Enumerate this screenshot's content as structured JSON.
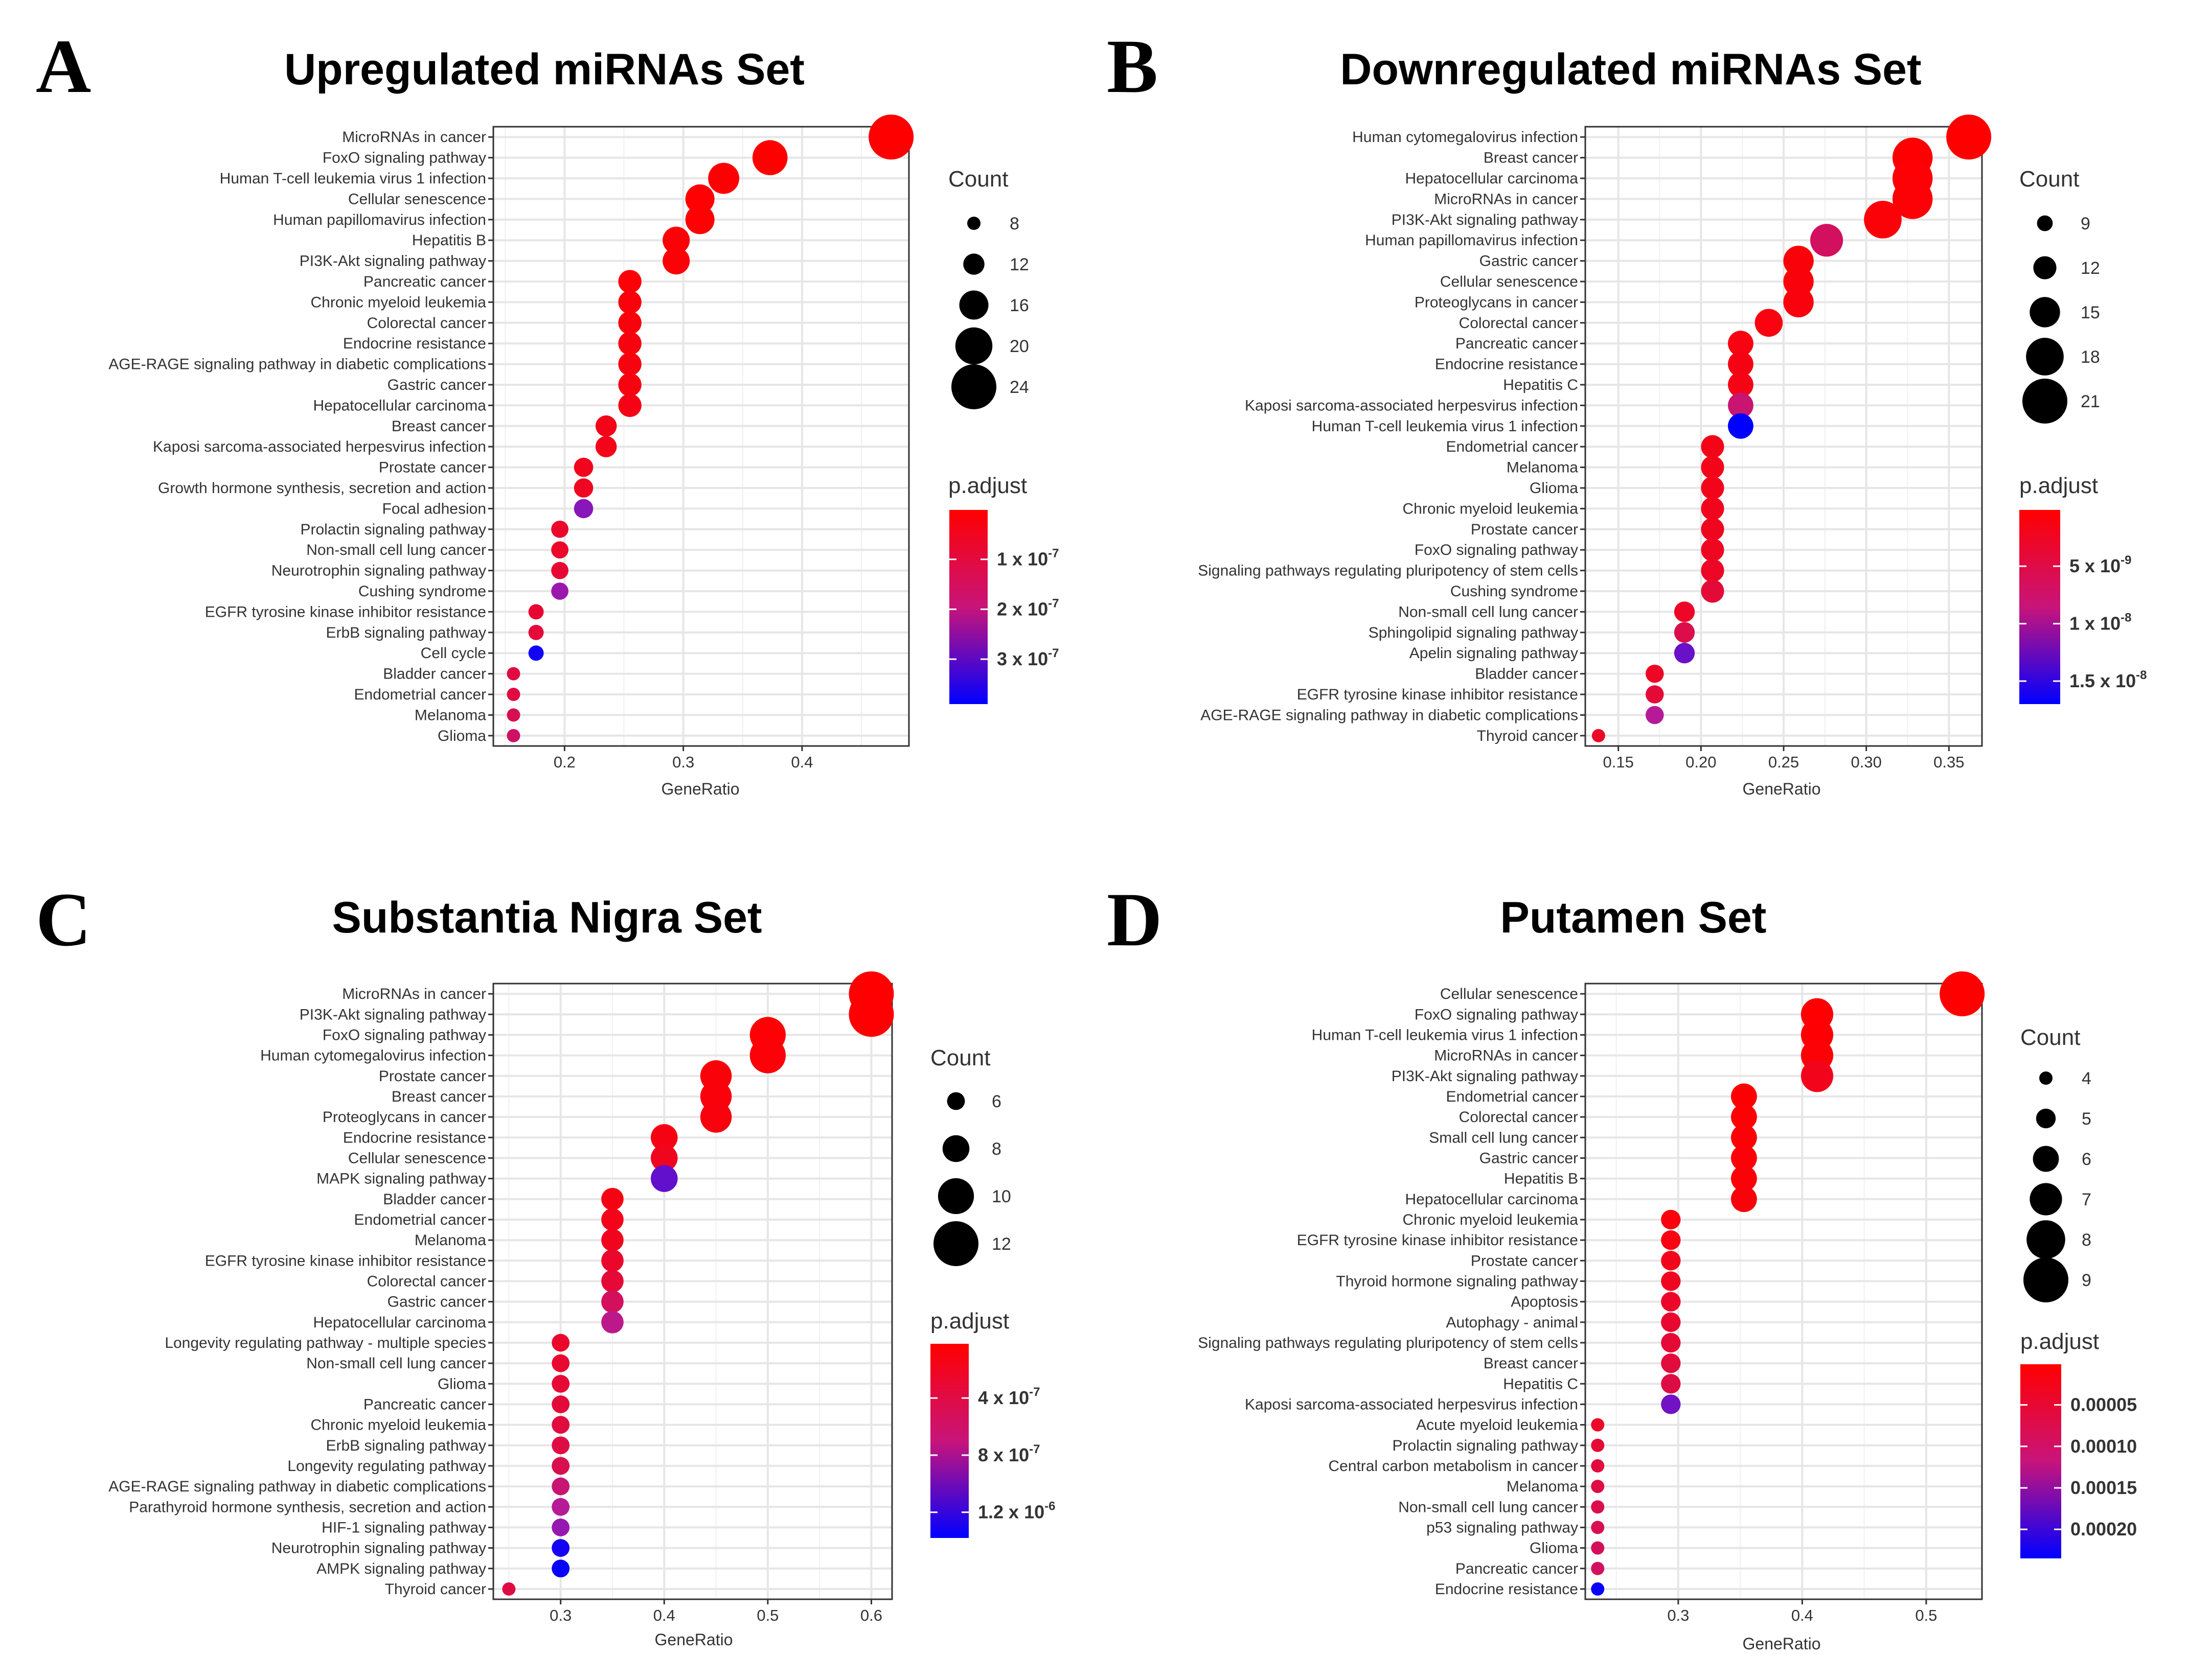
{
  "chart_data": [
    {
      "panel_label": "A",
      "type": "scatter",
      "title": "Upregulated miRNAs Set",
      "xlabel": "GeneRatio",
      "ylabel": "",
      "xlim": [
        0.14,
        0.49
      ],
      "xticks": [
        0.2,
        0.3,
        0.4
      ],
      "xtick_labels": [
        "0.2",
        "0.3",
        "0.4"
      ],
      "categories": [
        "MicroRNAs in cancer",
        "FoxO signaling pathway",
        "Human T-cell leukemia virus 1 infection",
        "Cellular senescence",
        "Human papillomavirus infection",
        "Hepatitis B",
        "PI3K-Akt signaling pathway",
        "Pancreatic cancer",
        "Chronic myeloid leukemia",
        "Colorectal cancer",
        "Endocrine resistance",
        "AGE-RAGE signaling pathway in diabetic complications",
        "Gastric cancer",
        "Hepatocellular carcinoma",
        "Breast cancer",
        "Kaposi sarcoma-associated herpesvirus infection",
        "Prostate cancer",
        "Growth hormone synthesis, secretion and action",
        "Focal adhesion",
        "Prolactin signaling pathway",
        "Non-small cell lung cancer",
        "Neurotrophin signaling pathway",
        "Cushing syndrome",
        "EGFR tyrosine kinase inhibitor resistance",
        "ErbB signaling pathway",
        "Cell cycle",
        "Bladder cancer",
        "Endometrial cancer",
        "Melanoma",
        "Glioma"
      ],
      "x": [
        0.475,
        0.373,
        0.334,
        0.314,
        0.314,
        0.294,
        0.294,
        0.255,
        0.255,
        0.255,
        0.255,
        0.255,
        0.255,
        0.255,
        0.235,
        0.235,
        0.216,
        0.216,
        0.216,
        0.196,
        0.196,
        0.196,
        0.196,
        0.176,
        0.176,
        0.176,
        0.157,
        0.157,
        0.157,
        0.157
      ],
      "count": [
        24,
        19,
        17,
        16,
        16,
        15,
        15,
        13,
        13,
        13,
        13,
        13,
        13,
        13,
        12,
        12,
        11,
        11,
        11,
        10,
        10,
        10,
        10,
        9,
        9,
        9,
        8,
        8,
        8,
        8
      ],
      "p_adjust": [
        1e-09,
        2e-09,
        3e-09,
        5e-09,
        5e-09,
        8e-09,
        1e-08,
        1e-08,
        1.5e-08,
        1.5e-08,
        2e-08,
        2e-08,
        2e-08,
        2.5e-08,
        3e-08,
        3e-08,
        3.5e-08,
        4e-08,
        2.4e-07,
        5e-08,
        5e-08,
        6e-08,
        2.2e-07,
        6e-08,
        7e-08,
        3.7e-07,
        8e-08,
        8e-08,
        1e-07,
        1.2e-07
      ],
      "size_legend": {
        "title": "Count",
        "values": [
          8,
          12,
          16,
          20,
          24
        ],
        "labels": [
          "8",
          "12",
          "16",
          "20",
          "24"
        ],
        "range": [
          8,
          24
        ]
      },
      "color_legend": {
        "title": "p.adjust",
        "min": 1e-09,
        "max": 3.9e-07,
        "ticks": [
          1e-07,
          2e-07,
          3e-07
        ],
        "labels": [
          {
            "mant": "1",
            "exp": "-7"
          },
          {
            "mant": "2",
            "exp": "-7"
          },
          {
            "mant": "3",
            "exp": "-7"
          }
        ]
      }
    },
    {
      "panel_label": "B",
      "type": "scatter",
      "title": "Downregulated miRNAs Set",
      "xlabel": "GeneRatio",
      "ylabel": "",
      "xlim": [
        0.13,
        0.37
      ],
      "xticks": [
        0.15,
        0.2,
        0.25,
        0.3,
        0.35
      ],
      "xtick_labels": [
        "0.15",
        "0.20",
        "0.25",
        "0.30",
        "0.35"
      ],
      "categories": [
        "Human cytomegalovirus infection",
        "Breast cancer",
        "Hepatocellular carcinoma",
        "MicroRNAs in cancer",
        "PI3K-Akt signaling pathway",
        "Human papillomavirus infection",
        "Gastric cancer",
        "Cellular senescence",
        "Proteoglycans in cancer",
        "Colorectal cancer",
        "Pancreatic cancer",
        "Endocrine resistance",
        "Hepatitis C",
        "Kaposi sarcoma-associated herpesvirus infection",
        "Human T-cell leukemia virus 1 infection",
        "Endometrial cancer",
        "Melanoma",
        "Glioma",
        "Chronic myeloid leukemia",
        "Prostate cancer",
        "FoxO signaling pathway",
        "Signaling pathways regulating pluripotency of stem cells",
        "Cushing syndrome",
        "Non-small cell lung cancer",
        "Sphingolipid signaling pathway",
        "Apelin signaling pathway",
        "Bladder cancer",
        "EGFR tyrosine kinase inhibitor resistance",
        "AGE-RAGE signaling pathway in diabetic complications",
        "Thyroid cancer"
      ],
      "x": [
        0.362,
        0.328,
        0.328,
        0.328,
        0.31,
        0.276,
        0.259,
        0.259,
        0.259,
        0.241,
        0.224,
        0.224,
        0.224,
        0.224,
        0.224,
        0.207,
        0.207,
        0.207,
        0.207,
        0.207,
        0.207,
        0.207,
        0.207,
        0.19,
        0.19,
        0.19,
        0.172,
        0.172,
        0.172,
        0.138
      ],
      "count": [
        21,
        19,
        19,
        19,
        18,
        16,
        15,
        15,
        15,
        14,
        13,
        13,
        13,
        13,
        13,
        12,
        12,
        12,
        12,
        12,
        12,
        12,
        12,
        11,
        11,
        11,
        10,
        10,
        10,
        8
      ],
      "p_adjust": [
        1e-10,
        2e-10,
        3e-10,
        4e-10,
        5e-10,
        5e-09,
        6e-10,
        7e-10,
        8e-10,
        9e-10,
        1e-09,
        1.1e-09,
        1.2e-09,
        6e-09,
        1.7e-08,
        1.3e-09,
        1.4e-09,
        1.5e-09,
        1.6e-09,
        1.7e-09,
        1.8e-09,
        2e-09,
        3e-09,
        2e-09,
        4e-09,
        1.2e-08,
        2e-09,
        3e-09,
        8e-09,
        2e-09
      ],
      "size_legend": {
        "title": "Count",
        "values": [
          9,
          12,
          15,
          18,
          21
        ],
        "labels": [
          "9",
          "12",
          "15",
          "18",
          "21"
        ],
        "range": [
          8,
          21
        ]
      },
      "color_legend": {
        "title": "p.adjust",
        "min": 1e-10,
        "max": 1.7e-08,
        "ticks": [
          5e-09,
          1e-08,
          1.5e-08
        ],
        "labels": [
          {
            "mant": "5",
            "exp": "-9"
          },
          {
            "mant": "1",
            "exp": "-8"
          },
          {
            "mant": "1.5",
            "exp": "-8"
          }
        ]
      }
    },
    {
      "panel_label": "C",
      "type": "scatter",
      "title": "Substantia Nigra Set",
      "xlabel": "GeneRatio",
      "ylabel": "",
      "xlim": [
        0.235,
        0.62
      ],
      "xticks": [
        0.3,
        0.4,
        0.5,
        0.6
      ],
      "xtick_labels": [
        "0.3",
        "0.4",
        "0.5",
        "0.6"
      ],
      "categories": [
        "MicroRNAs in cancer",
        "PI3K-Akt signaling pathway",
        "FoxO signaling pathway",
        "Human cytomegalovirus infection",
        "Prostate cancer",
        "Breast cancer",
        "Proteoglycans in cancer",
        "Endocrine resistance",
        "Cellular senescence",
        "MAPK signaling pathway",
        "Bladder cancer",
        "Endometrial cancer",
        "Melanoma",
        "EGFR tyrosine kinase inhibitor resistance",
        "Colorectal cancer",
        "Gastric cancer",
        "Hepatocellular carcinoma",
        "Longevity regulating pathway - multiple species",
        "Non-small cell lung cancer",
        "Glioma",
        "Pancreatic cancer",
        "Chronic myeloid leukemia",
        "ErbB signaling pathway",
        "Longevity regulating pathway",
        "AGE-RAGE signaling pathway in diabetic complications",
        "Parathyroid hormone synthesis, secretion and action",
        "HIF-1 signaling pathway",
        "Neurotrophin signaling pathway",
        "AMPK signaling pathway",
        "Thyroid cancer"
      ],
      "x": [
        0.6,
        0.6,
        0.5,
        0.5,
        0.45,
        0.45,
        0.45,
        0.4,
        0.4,
        0.4,
        0.35,
        0.35,
        0.35,
        0.35,
        0.35,
        0.35,
        0.35,
        0.3,
        0.3,
        0.3,
        0.3,
        0.3,
        0.3,
        0.3,
        0.3,
        0.3,
        0.3,
        0.3,
        0.3,
        0.25
      ],
      "count": [
        12,
        12,
        10,
        10,
        9,
        9,
        9,
        8,
        8,
        8,
        7,
        7,
        7,
        7,
        7,
        7,
        7,
        6,
        6,
        6,
        6,
        6,
        6,
        6,
        6,
        6,
        6,
        6,
        6,
        5
      ],
      "p_adjust": [
        2e-08,
        3e-08,
        4e-08,
        5e-08,
        6e-08,
        7e-08,
        8e-08,
        1e-07,
        1.5e-07,
        1e-06,
        1e-07,
        1.2e-07,
        1.4e-07,
        2e-07,
        2.5e-07,
        4e-07,
        6e-07,
        2e-07,
        2.2e-07,
        2.4e-07,
        2.6e-07,
        2.8e-07,
        3e-07,
        3.5e-07,
        5e-07,
        6.5e-07,
        8e-07,
        1.3e-06,
        1.35e-06,
        3e-07
      ],
      "size_legend": {
        "title": "Count",
        "values": [
          6,
          8,
          10,
          12
        ],
        "labels": [
          "6",
          "8",
          "10",
          "12"
        ],
        "range": [
          5,
          12
        ]
      },
      "color_legend": {
        "title": "p.adjust",
        "min": 2e-08,
        "max": 1.38e-06,
        "ticks": [
          4e-07,
          8e-07,
          1.2e-06
        ],
        "labels": [
          {
            "mant": "4",
            "exp": "-7"
          },
          {
            "mant": "8",
            "exp": "-7"
          },
          {
            "mant": "1.2",
            "exp": "-6"
          }
        ]
      }
    },
    {
      "panel_label": "D",
      "type": "scatter",
      "title": "Putamen Set",
      "xlabel": "GeneRatio",
      "ylabel": "",
      "xlim": [
        0.225,
        0.545
      ],
      "xticks": [
        0.3,
        0.4,
        0.5
      ],
      "xtick_labels": [
        "0.3",
        "0.4",
        "0.5"
      ],
      "categories": [
        "Cellular senescence",
        "FoxO signaling pathway",
        "Human T-cell leukemia virus 1 infection",
        "MicroRNAs in cancer",
        "PI3K-Akt signaling pathway",
        "Endometrial cancer",
        "Colorectal cancer",
        "Small cell lung cancer",
        "Gastric cancer",
        "Hepatitis B",
        "Hepatocellular carcinoma",
        "Chronic myeloid leukemia",
        "EGFR tyrosine kinase inhibitor resistance",
        "Prostate cancer",
        "Thyroid hormone signaling pathway",
        "Apoptosis",
        "Autophagy - animal",
        "Signaling pathways regulating pluripotency of stem cells",
        "Breast cancer",
        "Hepatitis C",
        "Kaposi sarcoma-associated herpesvirus infection",
        "Acute myeloid leukemia",
        "Prolactin signaling pathway",
        "Central carbon metabolism in cancer",
        "Melanoma",
        "Non-small cell lung cancer",
        "p53 signaling pathway",
        "Glioma",
        "Pancreatic cancer",
        "Endocrine resistance"
      ],
      "x": [
        0.529,
        0.412,
        0.412,
        0.412,
        0.412,
        0.353,
        0.353,
        0.353,
        0.353,
        0.353,
        0.353,
        0.294,
        0.294,
        0.294,
        0.294,
        0.294,
        0.294,
        0.294,
        0.294,
        0.294,
        0.294,
        0.235,
        0.235,
        0.235,
        0.235,
        0.235,
        0.235,
        0.235,
        0.235,
        0.235
      ],
      "count": [
        9,
        7,
        7,
        7,
        7,
        6,
        6,
        6,
        6,
        6,
        6,
        5,
        5,
        5,
        5,
        5,
        5,
        5,
        5,
        5,
        5,
        4,
        4,
        4,
        4,
        4,
        4,
        4,
        4,
        4
      ],
      "p_adjust": [
        1e-06,
        2e-06,
        3e-06,
        5e-06,
        2e-05,
        3e-06,
        4e-06,
        5e-06,
        6e-06,
        7e-06,
        8e-06,
        1e-05,
        1.5e-05,
        2e-05,
        2.5e-05,
        3e-05,
        3.5e-05,
        4e-05,
        4.5e-05,
        5e-05,
        0.00016,
        3e-05,
        4e-05,
        4.5e-05,
        5e-05,
        5.5e-05,
        6e-05,
        6.5e-05,
        7e-05,
        0.00023
      ],
      "size_legend": {
        "title": "Count",
        "values": [
          4,
          5,
          6,
          7,
          8,
          9
        ],
        "labels": [
          "4",
          "5",
          "6",
          "7",
          "8",
          "9"
        ],
        "range": [
          4,
          9
        ]
      },
      "color_legend": {
        "title": "p.adjust",
        "min": 1e-06,
        "max": 0.000235,
        "ticks": [
          5e-05,
          0.0001,
          0.00015,
          0.0002
        ],
        "labels": [
          {
            "mant": "0.00005",
            "exp": ""
          },
          {
            "mant": "0.00010",
            "exp": ""
          },
          {
            "mant": "0.00015",
            "exp": ""
          },
          {
            "mant": "0.00020",
            "exp": ""
          }
        ]
      }
    }
  ],
  "colors": {
    "high": "#ff0000",
    "mid": "#b11ca3",
    "low": "#0000ff",
    "panel_bg": "#ffffff",
    "grid": "#e6e6e6",
    "point_outline": "none"
  }
}
